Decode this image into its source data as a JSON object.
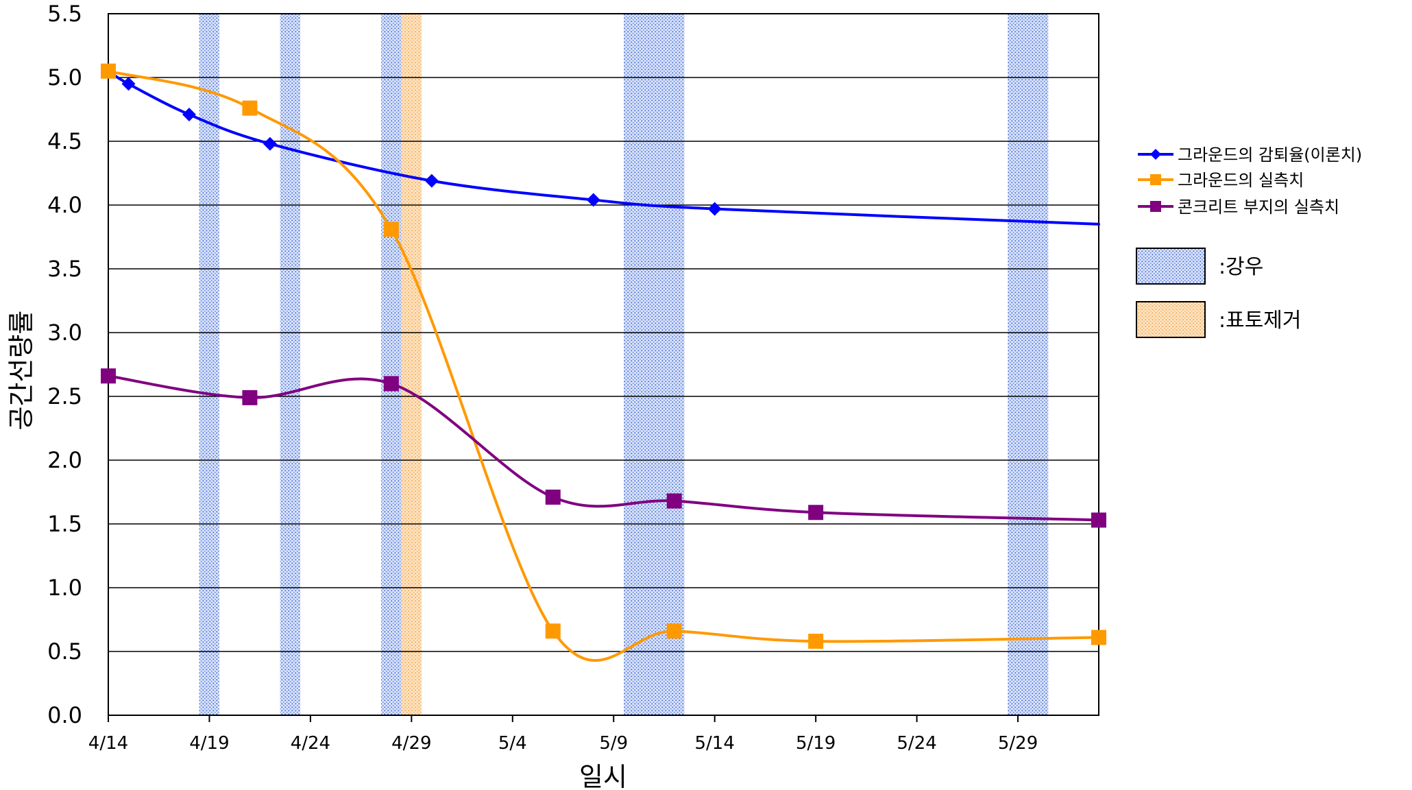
{
  "chart_data": {
    "type": "line",
    "xlabel": "일시",
    "ylabel": "공간선량률",
    "ylim": [
      0,
      5.5
    ],
    "yticks": [
      "0.0",
      "0.5",
      "1.0",
      "1.5",
      "2.0",
      "2.5",
      "3.0",
      "3.5",
      "4.0",
      "4.5",
      "5.0",
      "5.5"
    ],
    "x_start": "4/14",
    "x_end": "6/2",
    "xticks": [
      "4/14",
      "4/19",
      "4/24",
      "4/29",
      "5/4",
      "5/9",
      "5/14",
      "5/19",
      "5/24",
      "5/29"
    ],
    "grid": "horizontal",
    "legend_position": "right",
    "series": [
      {
        "name": "그라운드의 감퇴율(이론치)",
        "color": "#0000ff",
        "marker": "diamond",
        "points": [
          [
            "4/14",
            5.05
          ],
          [
            "4/15",
            4.95
          ],
          [
            "4/18",
            4.71
          ],
          [
            "4/22",
            4.48
          ],
          [
            "4/30",
            4.19
          ],
          [
            "5/8",
            4.04
          ],
          [
            "5/14",
            3.97
          ],
          [
            "6/2",
            3.85
          ]
        ],
        "marker_points": [
          [
            "4/14",
            5.05
          ],
          [
            "4/15",
            4.95
          ],
          [
            "4/18",
            4.71
          ],
          [
            "4/22",
            4.48
          ],
          [
            "4/30",
            4.19
          ],
          [
            "5/8",
            4.04
          ],
          [
            "5/14",
            3.97
          ]
        ]
      },
      {
        "name": "그라운드의 실측치",
        "color": "#ff9900",
        "marker": "square",
        "points": [
          [
            "4/14",
            5.05
          ],
          [
            "4/21",
            4.76
          ],
          [
            "4/28",
            3.81
          ],
          [
            "5/6",
            0.66
          ],
          [
            "5/12",
            0.66
          ],
          [
            "5/19",
            0.58
          ],
          [
            "6/2",
            0.61
          ]
        ],
        "marker_points": [
          [
            "4/14",
            5.05
          ],
          [
            "4/21",
            4.76
          ],
          [
            "4/28",
            3.81
          ],
          [
            "5/6",
            0.66
          ],
          [
            "5/12",
            0.66
          ],
          [
            "5/19",
            0.58
          ],
          [
            "6/2",
            0.61
          ]
        ]
      },
      {
        "name": "콘크리트 부지의 실측치",
        "color": "#800080",
        "marker": "square",
        "points": [
          [
            "4/14",
            2.66
          ],
          [
            "4/21",
            2.49
          ],
          [
            "4/28",
            2.6
          ],
          [
            "5/6",
            1.71
          ],
          [
            "5/12",
            1.68
          ],
          [
            "5/19",
            1.59
          ],
          [
            "6/2",
            1.53
          ]
        ],
        "marker_points": [
          [
            "4/14",
            2.66
          ],
          [
            "4/21",
            2.49
          ],
          [
            "4/28",
            2.6
          ],
          [
            "5/6",
            1.71
          ],
          [
            "5/12",
            1.68
          ],
          [
            "5/19",
            1.59
          ],
          [
            "6/2",
            1.53
          ]
        ]
      }
    ],
    "bands": [
      {
        "type": "rain",
        "start": "4/18.5",
        "end": "4/19.5"
      },
      {
        "type": "rain",
        "start": "4/22.5",
        "end": "4/23.5"
      },
      {
        "type": "rain",
        "start": "4/27.5",
        "end": "4/28.5"
      },
      {
        "type": "topsoil",
        "start": "4/28.5",
        "end": "4/29.5"
      },
      {
        "type": "rain",
        "start": "5/9.5",
        "end": "5/12.5"
      },
      {
        "type": "rain",
        "start": "5/28.5",
        "end": "5/30.5"
      }
    ],
    "band_legend": [
      {
        "type": "rain",
        "label": ":강우"
      },
      {
        "type": "topsoil",
        "label": ":표토제거"
      }
    ]
  }
}
